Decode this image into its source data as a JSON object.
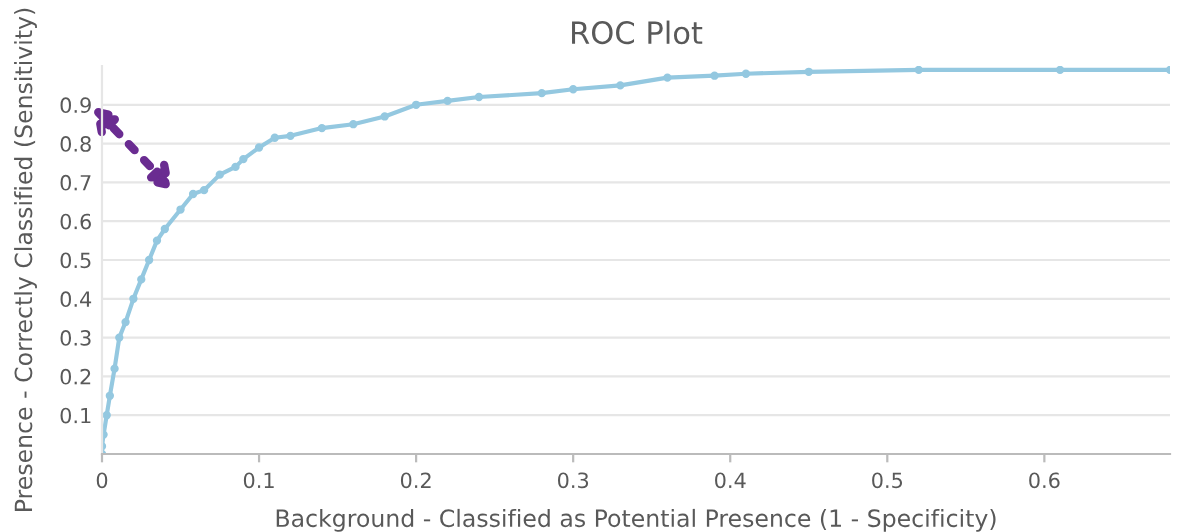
{
  "chart_data": {
    "type": "line",
    "title": "ROC Plot",
    "xlabel": "Background - Classified as Potential Presence (1 - Specificity)",
    "ylabel": "Presence - Correctly Classified (Sensitivity)",
    "series": [
      {
        "color": "#94c8e0",
        "x": [
          0,
          0,
          0.001,
          0.003,
          0.005,
          0.008,
          0.011,
          0.015,
          0.02,
          0.025,
          0.03,
          0.035,
          0.04,
          0.05,
          0.058,
          0.065,
          0.075,
          0.085,
          0.09,
          0.1,
          0.11,
          0.12,
          0.14,
          0.16,
          0.18,
          0.2,
          0.22,
          0.24,
          0.28,
          0.3,
          0.33,
          0.36,
          0.39,
          0.41,
          0.45,
          0.52,
          0.61,
          0.68
        ],
        "values": [
          0,
          0.02,
          0.05,
          0.1,
          0.15,
          0.22,
          0.3,
          0.34,
          0.4,
          0.45,
          0.5,
          0.55,
          0.58,
          0.63,
          0.67,
          0.68,
          0.72,
          0.74,
          0.76,
          0.79,
          0.815,
          0.82,
          0.84,
          0.85,
          0.87,
          0.9,
          0.91,
          0.92,
          0.93,
          0.94,
          0.95,
          0.97,
          0.975,
          0.98,
          0.985,
          0.99,
          0.99,
          0.99
        ]
      }
    ],
    "xlim": [
      0,
      0.68
    ],
    "ylim": [
      0,
      1.0
    ],
    "xticks": [
      0,
      0.1,
      0.2,
      0.3,
      0.4,
      0.5,
      0.6
    ],
    "yticks": [
      0.1,
      0.2,
      0.3,
      0.4,
      0.5,
      0.6,
      0.7,
      0.8,
      0.9
    ],
    "grid": "y",
    "marker": "circle",
    "line_style": "solid",
    "legend": false
  }
}
